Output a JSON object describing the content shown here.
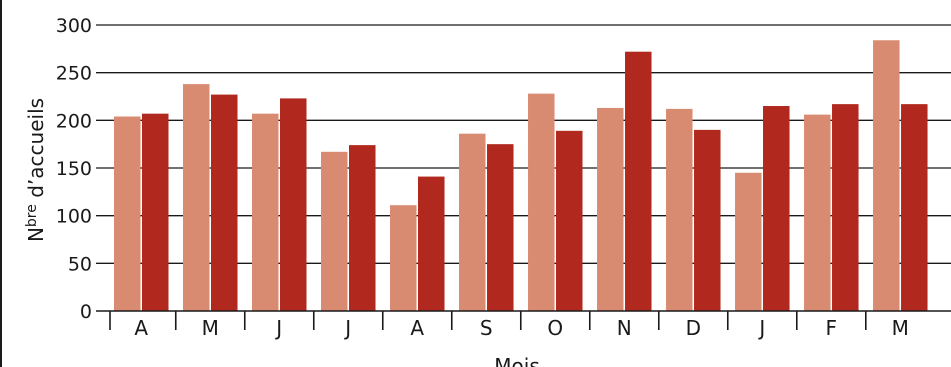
{
  "chart_data": {
    "type": "bar",
    "title": "",
    "xlabel": "Mois",
    "ylabel_prefix": "N",
    "ylabel_superscript": "bre",
    "ylabel_rest": " d’accueils",
    "ylim": [
      0,
      300
    ],
    "yticks": [
      0,
      50,
      100,
      150,
      200,
      250,
      300
    ],
    "grid": true,
    "categories": [
      "A",
      "M",
      "J",
      "J",
      "A",
      "S",
      "O",
      "N",
      "D",
      "J",
      "F",
      "M"
    ],
    "series": [
      {
        "color": "#d98b72",
        "values": [
          204,
          238,
          207,
          167,
          111,
          186,
          228,
          213,
          212,
          145,
          206,
          284
        ]
      },
      {
        "color": "#b0281e",
        "values": [
          207,
          227,
          223,
          174,
          141,
          175,
          189,
          272,
          190,
          215,
          217,
          217
        ]
      }
    ]
  }
}
